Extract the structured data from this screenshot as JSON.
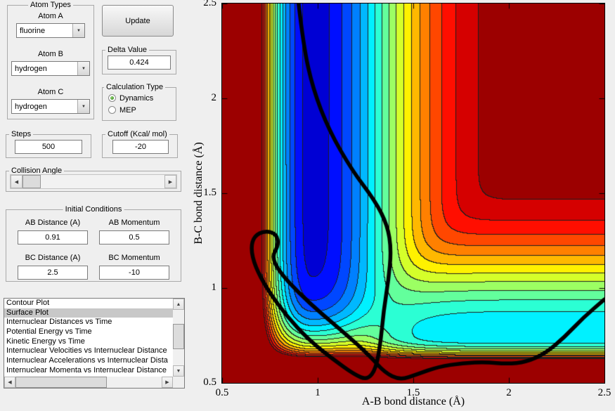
{
  "window": {
    "background": "#efefef",
    "selection_bg": "#c8c8c8"
  },
  "atom_types": {
    "title": "Atom Types",
    "fields": [
      {
        "key": "atom-a",
        "label": "Atom A",
        "value": "fluorine"
      },
      {
        "key": "atom-b",
        "label": "Atom B",
        "value": "hydrogen"
      },
      {
        "key": "atom-c",
        "label": "Atom C",
        "value": "hydrogen"
      }
    ]
  },
  "update_button": {
    "label": "Update"
  },
  "delta": {
    "title": "Delta Value",
    "value": "0.424"
  },
  "calculation_type": {
    "title": "Calculation Type",
    "options": [
      {
        "label": "Dynamics",
        "selected": true
      },
      {
        "label": "MEP",
        "selected": false
      }
    ]
  },
  "steps": {
    "title": "Steps",
    "value": "500"
  },
  "cutoff": {
    "title": "Cutoff (Kcal/ mol)",
    "value": "-20"
  },
  "collision_angle": {
    "title": "Collision Angle"
  },
  "initial_conditions": {
    "title": "Initial Conditions",
    "fields": [
      {
        "key": "ab-distance",
        "label": "AB Distance (A)",
        "value": "0.91"
      },
      {
        "key": "ab-momentum",
        "label": "AB Momentum",
        "value": "0.5"
      },
      {
        "key": "bc-distance",
        "label": "BC Distance (A)",
        "value": "2.5"
      },
      {
        "key": "bc-momentum",
        "label": "BC Momentum",
        "value": "-10"
      }
    ]
  },
  "plot_list": {
    "items": [
      "Contour Plot",
      "Surface Plot",
      "Internuclear Distances vs Time",
      "Potential Energy vs Time",
      "Kinetic Energy vs Time",
      "Internuclear Velocities vs Internuclear Distance",
      "Internuclear Accelerations vs Internuclear Dista",
      "Internuclear Momenta vs Internuclear Distance"
    ],
    "selected_index": 1
  },
  "chart_data": {
    "type": "heatmap",
    "title": "",
    "xlabel": "A-B bond distance (Å)",
    "ylabel": "B-C bond distance (Å)",
    "xlim": [
      0.5,
      2.5
    ],
    "ylim": [
      0.5,
      2.5
    ],
    "xticks": [
      "0.5",
      "1",
      "1.5",
      "2",
      "2.5"
    ],
    "yticks": [
      "0.5",
      "1",
      "1.5",
      "2",
      "2.5"
    ],
    "colormap": "jet",
    "contour_levels": 18,
    "value_range": [
      -180,
      0
    ],
    "surface_model": {
      "description": "LEPS-style collinear potential energy surface: soft-max combination of A-B and B-C bond wells (each gated by the other bond distance) plus repulsive walls at short distances; filled contours in jet colors with thin dark contour lines",
      "ab_well": {
        "re": 0.97,
        "depth": 165,
        "width_in": 0.33,
        "width_out": 0.52,
        "gate_center": 0.7,
        "gate_width": 0.1
      },
      "bc_well": {
        "re": 0.74,
        "depth": 120,
        "width_in": 0.16,
        "width_out": 0.46,
        "gate_center": 1.22,
        "gate_width": 0.12
      },
      "wall_ab": {
        "amp": 420,
        "scale": 0.155,
        "power": 1.7
      },
      "wall_bc": {
        "amp": 420,
        "scale": 0.085,
        "power": 1.7
      },
      "softmax_p": 3
    },
    "trajectory": {
      "color": "#000000",
      "width": 5.5,
      "points": [
        [
          0.9,
          2.5
        ],
        [
          0.925,
          2.28
        ],
        [
          0.975,
          2.05
        ],
        [
          1.06,
          1.83
        ],
        [
          1.18,
          1.62
        ],
        [
          1.3,
          1.46
        ],
        [
          1.365,
          1.33
        ],
        [
          1.385,
          1.2
        ],
        [
          1.37,
          1.04
        ],
        [
          1.345,
          0.88
        ],
        [
          1.33,
          0.72
        ],
        [
          1.305,
          0.575
        ],
        [
          1.26,
          0.515
        ],
        [
          1.19,
          0.545
        ],
        [
          1.08,
          0.625
        ],
        [
          0.955,
          0.725
        ],
        [
          0.835,
          0.855
        ],
        [
          0.735,
          0.995
        ],
        [
          0.672,
          1.115
        ],
        [
          0.65,
          1.21
        ],
        [
          0.668,
          1.275
        ],
        [
          0.725,
          1.303
        ],
        [
          0.785,
          1.285
        ],
        [
          0.795,
          1.225
        ],
        [
          0.76,
          1.165
        ],
        [
          0.8,
          1.085
        ],
        [
          0.9,
          0.975
        ],
        [
          1.02,
          0.865
        ],
        [
          1.15,
          0.755
        ],
        [
          1.27,
          0.645
        ],
        [
          1.35,
          0.555
        ],
        [
          1.43,
          0.515
        ],
        [
          1.52,
          0.545
        ],
        [
          1.63,
          0.585
        ],
        [
          1.76,
          0.605
        ],
        [
          1.88,
          0.61
        ],
        [
          1.99,
          0.6
        ],
        [
          2.09,
          0.61
        ],
        [
          2.19,
          0.655
        ],
        [
          2.29,
          0.74
        ],
        [
          2.39,
          0.845
        ],
        [
          2.5,
          0.94
        ]
      ]
    }
  }
}
